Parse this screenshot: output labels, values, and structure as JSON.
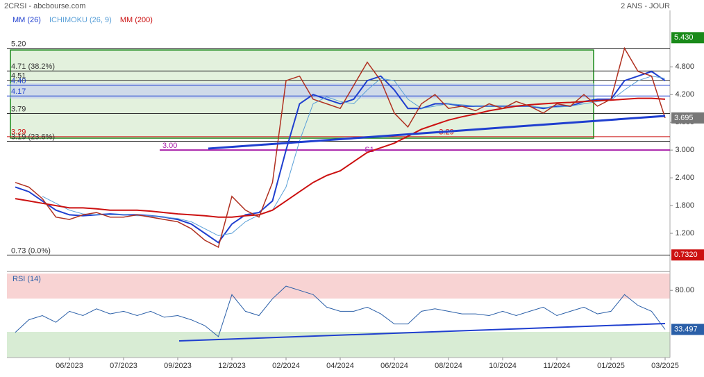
{
  "chart_data": [
    {
      "type": "line",
      "title": "2CRSI - abcbourse.com",
      "subtitle": "2 ANS - JOUR",
      "categories": [
        null,
        null,
        null,
        null,
        "06/2023",
        null,
        null,
        null,
        "07/2023",
        null,
        null,
        null,
        "09/2023",
        null,
        null,
        null,
        "12/2023",
        null,
        null,
        null,
        "02/2024",
        null,
        null,
        null,
        "04/2024",
        null,
        null,
        null,
        "06/2024",
        null,
        null,
        null,
        "08/2024",
        null,
        null,
        null,
        "10/2024",
        null,
        null,
        null,
        "11/2024",
        null,
        null,
        null,
        "01/2025",
        null,
        null,
        null,
        "03/2025"
      ],
      "values": [
        2.3,
        2.2,
        1.95,
        1.55,
        1.5,
        1.6,
        1.65,
        1.55,
        1.55,
        1.6,
        1.55,
        1.5,
        1.45,
        1.3,
        1.05,
        0.9,
        2.0,
        1.7,
        1.55,
        2.3,
        4.5,
        4.6,
        4.1,
        4.0,
        3.9,
        4.4,
        4.9,
        4.5,
        3.8,
        3.5,
        4.0,
        4.2,
        3.9,
        3.95,
        3.85,
        4.0,
        3.9,
        4.05,
        3.95,
        3.8,
        4.0,
        3.95,
        4.2,
        3.95,
        4.1,
        5.2,
        4.7,
        4.6,
        3.695
      ],
      "color": "#b03020",
      "series": [
        {
          "name": "MM (26)",
          "color": "#1f3fcf",
          "values": [
            2.2,
            2.1,
            1.9,
            1.7,
            1.6,
            1.58,
            1.6,
            1.62,
            1.6,
            1.6,
            1.58,
            1.55,
            1.5,
            1.4,
            1.2,
            1.0,
            1.4,
            1.6,
            1.65,
            1.9,
            3.0,
            4.0,
            4.2,
            4.1,
            4.0,
            4.1,
            4.5,
            4.6,
            4.3,
            3.9,
            3.9,
            4.0,
            4.0,
            3.95,
            3.95,
            3.95,
            3.95,
            3.95,
            3.95,
            3.9,
            3.95,
            3.95,
            4.05,
            4.1,
            4.1,
            4.5,
            4.6,
            4.7,
            4.5
          ]
        },
        {
          "name": "ICHIMOKU (26, 9)",
          "color": "#5aa0d8",
          "values": [
            null,
            null,
            2.0,
            1.85,
            1.7,
            1.62,
            1.6,
            1.6,
            1.6,
            1.58,
            1.58,
            1.55,
            1.52,
            1.45,
            1.3,
            1.15,
            1.2,
            1.45,
            1.6,
            1.7,
            2.2,
            3.2,
            4.0,
            4.15,
            4.05,
            4.0,
            4.3,
            4.55,
            4.5,
            4.1,
            3.9,
            3.95,
            4.0,
            3.98,
            3.95,
            3.95,
            3.95,
            3.95,
            3.95,
            3.92,
            3.93,
            3.95,
            4.0,
            4.05,
            4.08,
            4.3,
            4.5,
            4.6,
            4.55
          ]
        },
        {
          "name": "MM (200)",
          "color": "#cc1111",
          "values": [
            1.95,
            1.9,
            1.85,
            1.8,
            1.75,
            1.75,
            1.73,
            1.7,
            1.7,
            1.7,
            1.68,
            1.65,
            1.62,
            1.6,
            1.58,
            1.55,
            1.55,
            1.58,
            1.6,
            1.7,
            1.9,
            2.1,
            2.3,
            2.45,
            2.55,
            2.75,
            2.95,
            3.05,
            3.15,
            3.3,
            3.45,
            3.55,
            3.65,
            3.72,
            3.78,
            3.85,
            3.9,
            3.95,
            3.98,
            4.0,
            4.02,
            4.03,
            4.05,
            4.07,
            4.08,
            4.1,
            4.12,
            4.12,
            4.1
          ]
        }
      ],
      "ylim": [
        0.39,
        6.02
      ],
      "yticks": [
        {
          "value": 1.2,
          "label": "1.200"
        },
        {
          "value": 1.8,
          "label": "1.800"
        },
        {
          "value": 2.4,
          "label": "2.400"
        },
        {
          "value": 3.0,
          "label": "3.000"
        },
        {
          "value": 3.6,
          "label": "3.600"
        },
        {
          "value": 4.2,
          "label": "4.200"
        },
        {
          "value": 4.8,
          "label": "4.800"
        }
      ],
      "levels": [
        {
          "value": 5.2,
          "label": "5.20",
          "color": "#333333"
        },
        {
          "value": 4.71,
          "label": "4.71 (38.2%)",
          "color": "#333333"
        },
        {
          "value": 4.51,
          "label": "4.51",
          "color": "#333333"
        },
        {
          "value": 4.4,
          "label": "4.40",
          "color": "#1f3fcf"
        },
        {
          "value": 4.17,
          "label": "4.17",
          "color": "#1f3fcf"
        },
        {
          "value": 3.79,
          "label": "3.79",
          "color": "#333333"
        },
        {
          "value": 3.29,
          "label": "3.29",
          "color": "#cc1111"
        },
        {
          "value": 3.19,
          "label": "3.19 (23.6%)",
          "color": "#333333"
        },
        {
          "value": 3.0,
          "label": "3.00",
          "color": "#aa22aa"
        },
        {
          "value": 0.73,
          "label": "0.73 (0.0%)",
          "color": "#333333"
        }
      ],
      "annotations": [
        {
          "text": "S1",
          "value": 3.0
        },
        {
          "text": "3.29",
          "value": 3.29
        }
      ],
      "price_labels": [
        {
          "value": 5.43,
          "label": "5.430",
          "color": "#1a8a1a"
        },
        {
          "value": 3.695,
          "label": "3.695",
          "color": "#777777"
        },
        {
          "value": 0.732,
          "label": "0.7320",
          "color": "#cc1111"
        }
      ]
    },
    {
      "type": "line",
      "title": "RSI (14)",
      "color": "#2a5fa8",
      "values": [
        30,
        45,
        50,
        42,
        55,
        50,
        58,
        52,
        55,
        50,
        55,
        48,
        50,
        45,
        38,
        25,
        75,
        55,
        50,
        70,
        85,
        80,
        75,
        60,
        55,
        55,
        60,
        52,
        40,
        40,
        55,
        58,
        55,
        52,
        52,
        50,
        55,
        50,
        55,
        60,
        50,
        55,
        60,
        52,
        55,
        75,
        62,
        55,
        33.497
      ],
      "ylim": [
        0,
        100
      ],
      "yticks": [
        {
          "value": 80,
          "label": "80.00"
        }
      ],
      "last_label": {
        "value": 33.497,
        "label": "33.497"
      }
    }
  ]
}
